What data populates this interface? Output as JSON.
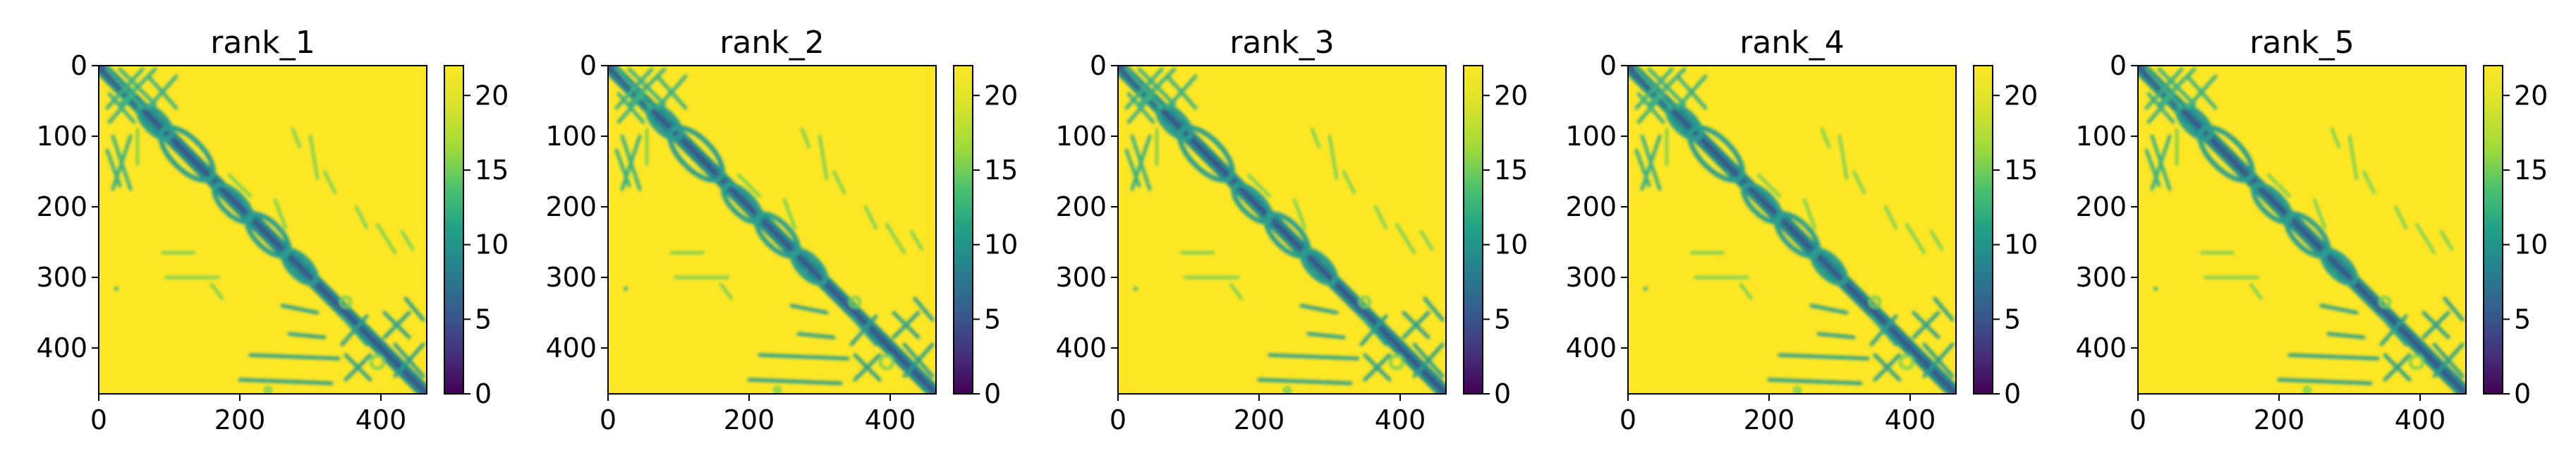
{
  "chart_data": [
    {
      "type": "heatmap",
      "title": "rank_1",
      "xticks": [
        "0",
        "200",
        "400"
      ],
      "yticks": [
        "0",
        "100",
        "200",
        "300",
        "400"
      ],
      "xlim": [
        0,
        465
      ],
      "ylim": [
        465,
        0
      ],
      "colorbar": {
        "ticks": [
          "0",
          "5",
          "10",
          "15",
          "20"
        ],
        "range": [
          0,
          22
        ],
        "colormap": "viridis"
      }
    },
    {
      "type": "heatmap",
      "title": "rank_2",
      "xticks": [
        "0",
        "200",
        "400"
      ],
      "yticks": [
        "0",
        "100",
        "200",
        "300",
        "400"
      ],
      "xlim": [
        0,
        465
      ],
      "ylim": [
        465,
        0
      ],
      "colorbar": {
        "ticks": [
          "0",
          "5",
          "10",
          "15",
          "20"
        ],
        "range": [
          0,
          22
        ],
        "colormap": "viridis"
      }
    },
    {
      "type": "heatmap",
      "title": "rank_3",
      "xticks": [
        "0",
        "200",
        "400"
      ],
      "yticks": [
        "0",
        "100",
        "200",
        "300",
        "400"
      ],
      "xlim": [
        0,
        465
      ],
      "ylim": [
        465,
        0
      ],
      "colorbar": {
        "ticks": [
          "0",
          "5",
          "10",
          "15",
          "20"
        ],
        "range": [
          0,
          22
        ],
        "colormap": "viridis"
      }
    },
    {
      "type": "heatmap",
      "title": "rank_4",
      "xticks": [
        "0",
        "200",
        "400"
      ],
      "yticks": [
        "0",
        "100",
        "200",
        "300",
        "400"
      ],
      "xlim": [
        0,
        465
      ],
      "ylim": [
        465,
        0
      ],
      "colorbar": {
        "ticks": [
          "0",
          "5",
          "10",
          "15",
          "20"
        ],
        "range": [
          0,
          22
        ],
        "colormap": "viridis"
      }
    },
    {
      "type": "heatmap",
      "title": "rank_5",
      "xticks": [
        "0",
        "200",
        "400"
      ],
      "yticks": [
        "0",
        "100",
        "200",
        "300",
        "400"
      ],
      "xlim": [
        0,
        465
      ],
      "ylim": [
        465,
        0
      ],
      "colorbar": {
        "ticks": [
          "0",
          "5",
          "10",
          "15",
          "20"
        ],
        "range": [
          0,
          22
        ],
        "colormap": "viridis"
      }
    }
  ]
}
